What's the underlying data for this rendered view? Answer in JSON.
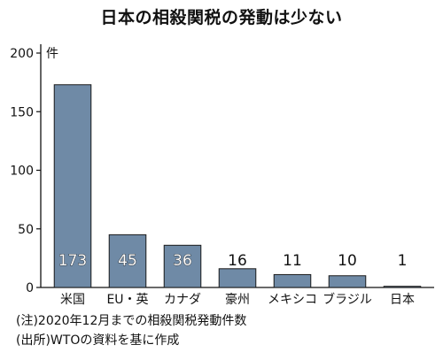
{
  "chart_data": {
    "type": "bar",
    "title": "日本の相殺関税の発動は少ない",
    "unit": "件",
    "categories": [
      "米国",
      "EU・英",
      "カナダ",
      "豪州",
      "メキシコ",
      "ブラジル",
      "日本"
    ],
    "values": [
      173,
      45,
      36,
      16,
      11,
      10,
      1
    ],
    "value_labels": [
      "173",
      "45",
      "36",
      "16",
      "11",
      "10",
      "1"
    ],
    "yticks": [
      0,
      50,
      100,
      150,
      200
    ],
    "ylim": [
      0,
      200
    ],
    "grid": false,
    "bar_color": "#6f8aa6",
    "notes": [
      "(注)2020年12月までの相殺関税発動件数",
      "(出所)WTOの資料を基に作成"
    ]
  }
}
